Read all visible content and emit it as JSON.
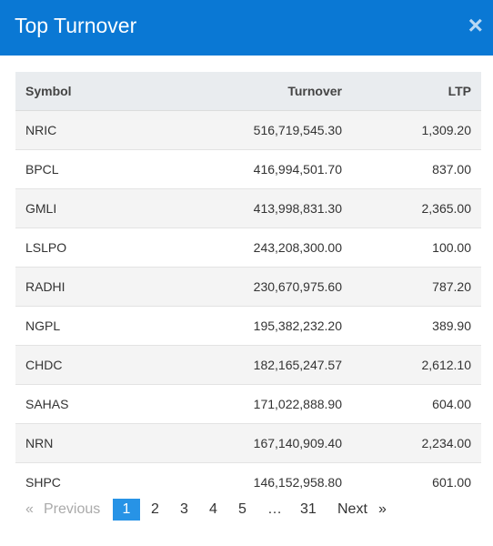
{
  "header": {
    "title": "Top Turnover",
    "close": "×"
  },
  "table": {
    "columns": [
      "Symbol",
      "Turnover",
      "LTP"
    ],
    "rows": [
      [
        "NRIC",
        "516,719,545.30",
        "1,309.20"
      ],
      [
        "BPCL",
        "416,994,501.70",
        "837.00"
      ],
      [
        "GMLI",
        "413,998,831.30",
        "2,365.00"
      ],
      [
        "LSLPO",
        "243,208,300.00",
        "100.00"
      ],
      [
        "RADHI",
        "230,670,975.60",
        "787.20"
      ],
      [
        "NGPL",
        "195,382,232.20",
        "389.90"
      ],
      [
        "CHDC",
        "182,165,247.57",
        "2,612.10"
      ],
      [
        "SAHAS",
        "171,022,888.90",
        "604.00"
      ],
      [
        "NRN",
        "167,140,909.40",
        "2,234.00"
      ],
      [
        "SHPC",
        "146,152,958.80",
        "601.00"
      ]
    ]
  },
  "pagination": {
    "prev_icon": "«",
    "prev": "Previous",
    "pages": [
      "1",
      "2",
      "3",
      "4",
      "5",
      "…",
      "31"
    ],
    "next": "Next",
    "next_icon": "»"
  }
}
